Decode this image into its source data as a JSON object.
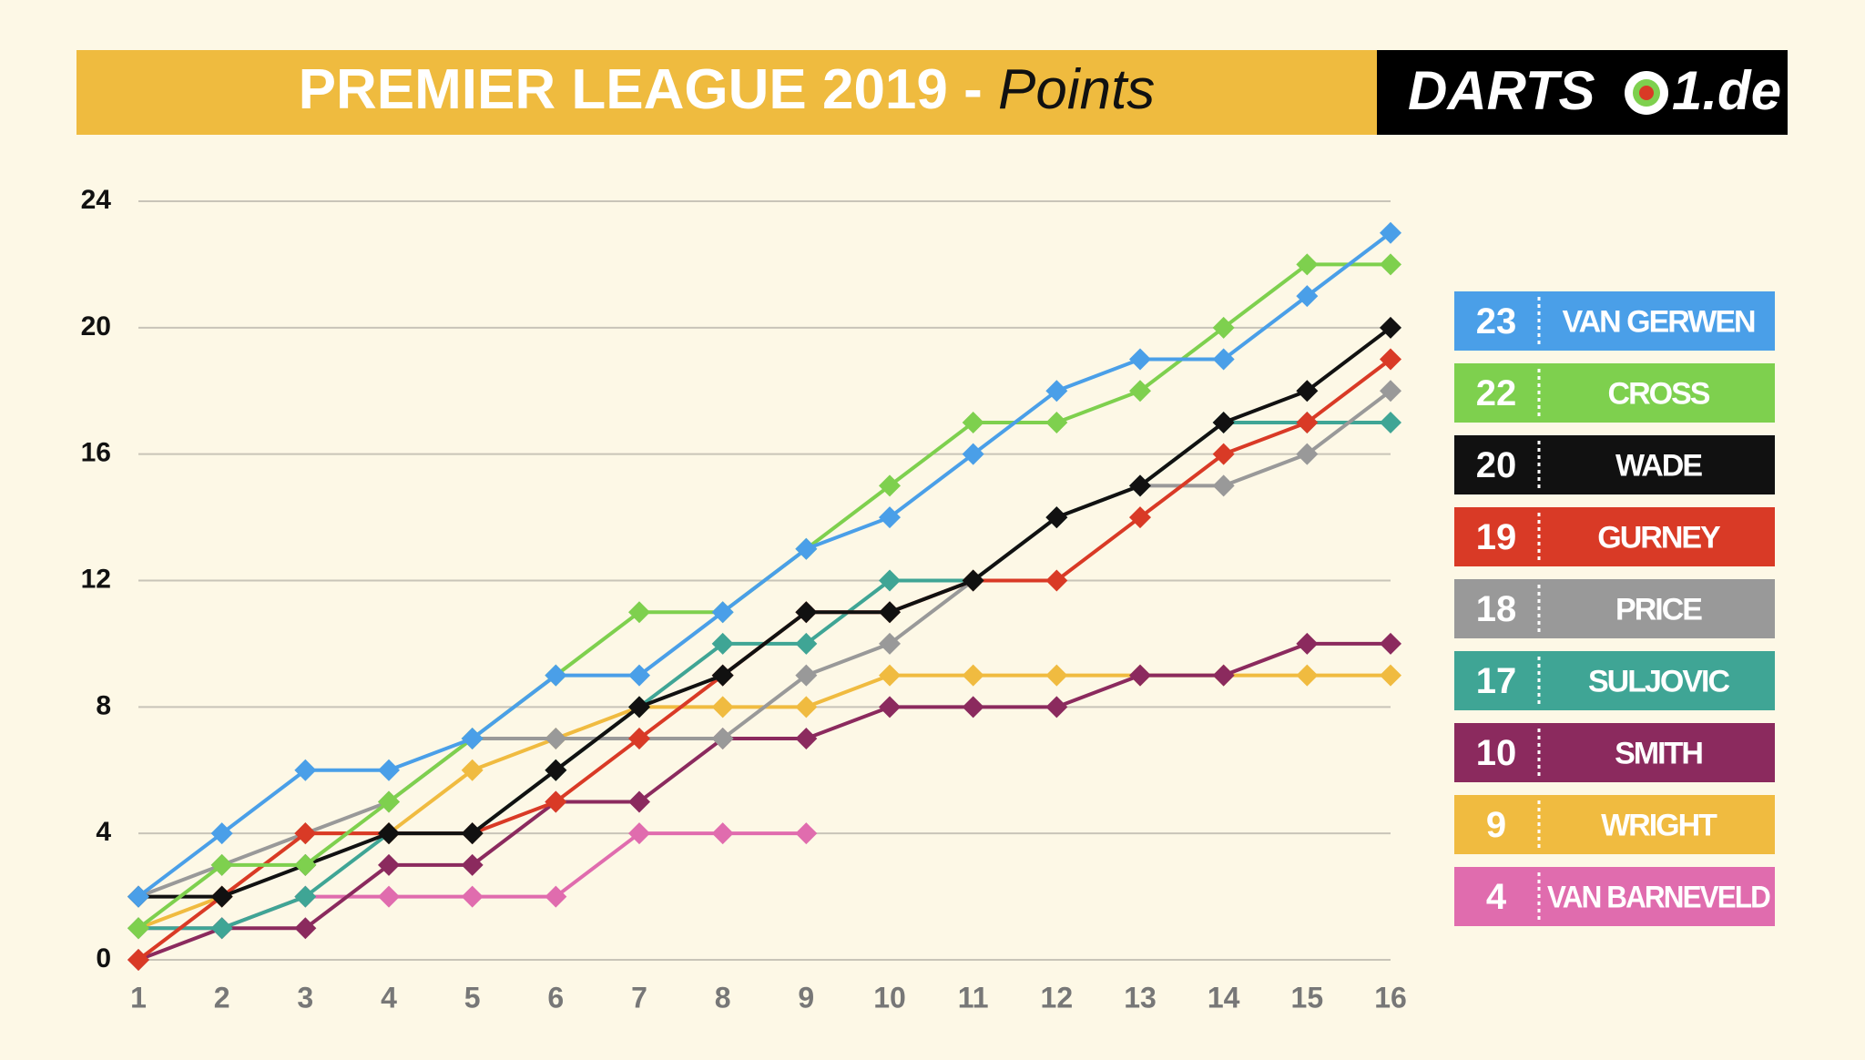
{
  "chart_data": {
    "type": "line",
    "title": "PREMIER LEAGUE 2019 - ",
    "title_emphasis": "Points",
    "logo": "DARTS",
    "logo_suffix": "1.de",
    "x": [
      1,
      2,
      3,
      4,
      5,
      6,
      7,
      8,
      9,
      10,
      11,
      12,
      13,
      14,
      15,
      16
    ],
    "xlim": [
      1,
      16
    ],
    "xticks": [
      1,
      2,
      3,
      4,
      5,
      6,
      7,
      8,
      9,
      10,
      11,
      12,
      13,
      14,
      15,
      16
    ],
    "ylim": [
      0,
      24
    ],
    "yticks": [
      0,
      4,
      8,
      12,
      16,
      20,
      24
    ],
    "grid": true,
    "legend": "right",
    "series": [
      {
        "name": "VAN GERWEN",
        "total": 23,
        "color": "#4a9fe8",
        "values": [
          2,
          4,
          6,
          6,
          7,
          9,
          9,
          11,
          13,
          14,
          16,
          18,
          19,
          19,
          21,
          23
        ]
      },
      {
        "name": "CROSS",
        "total": 22,
        "color": "#7ed04e",
        "values": [
          1,
          3,
          3,
          5,
          7,
          9,
          11,
          11,
          13,
          15,
          17,
          17,
          18,
          20,
          22,
          22
        ]
      },
      {
        "name": "WADE",
        "total": 20,
        "color": "#111111",
        "values": [
          2,
          2,
          3,
          4,
          4,
          6,
          8,
          9,
          11,
          11,
          12,
          14,
          15,
          17,
          18,
          20
        ]
      },
      {
        "name": "GURNEY",
        "total": 19,
        "color": "#d93a26",
        "values": [
          0,
          2,
          4,
          4,
          4,
          5,
          7,
          9,
          11,
          11,
          12,
          12,
          14,
          16,
          17,
          19
        ]
      },
      {
        "name": "PRICE",
        "total": 18,
        "color": "#999999",
        "values": [
          2,
          3,
          4,
          5,
          7,
          7,
          7,
          7,
          9,
          10,
          12,
          14,
          15,
          15,
          16,
          18
        ]
      },
      {
        "name": "SULJOVIC",
        "total": 17,
        "color": "#3fa595",
        "values": [
          1,
          1,
          2,
          4,
          4,
          6,
          8,
          10,
          10,
          12,
          12,
          14,
          15,
          17,
          17,
          17
        ]
      },
      {
        "name": "SMITH",
        "total": 10,
        "color": "#8b2a5e",
        "values": [
          0,
          1,
          1,
          3,
          3,
          5,
          5,
          7,
          7,
          8,
          8,
          8,
          9,
          9,
          10,
          10
        ]
      },
      {
        "name": "WRIGHT",
        "total": 9,
        "color": "#f0bb40",
        "values": [
          1,
          2,
          4,
          4,
          6,
          7,
          8,
          8,
          8,
          9,
          9,
          9,
          9,
          9,
          9,
          9
        ]
      },
      {
        "name": "VAN BARNEVELD",
        "total": 4,
        "color": "#e06cae",
        "values": [
          1,
          1,
          2,
          2,
          2,
          2,
          4,
          4,
          4,
          null,
          null,
          null,
          null,
          null,
          null,
          null
        ]
      }
    ]
  }
}
